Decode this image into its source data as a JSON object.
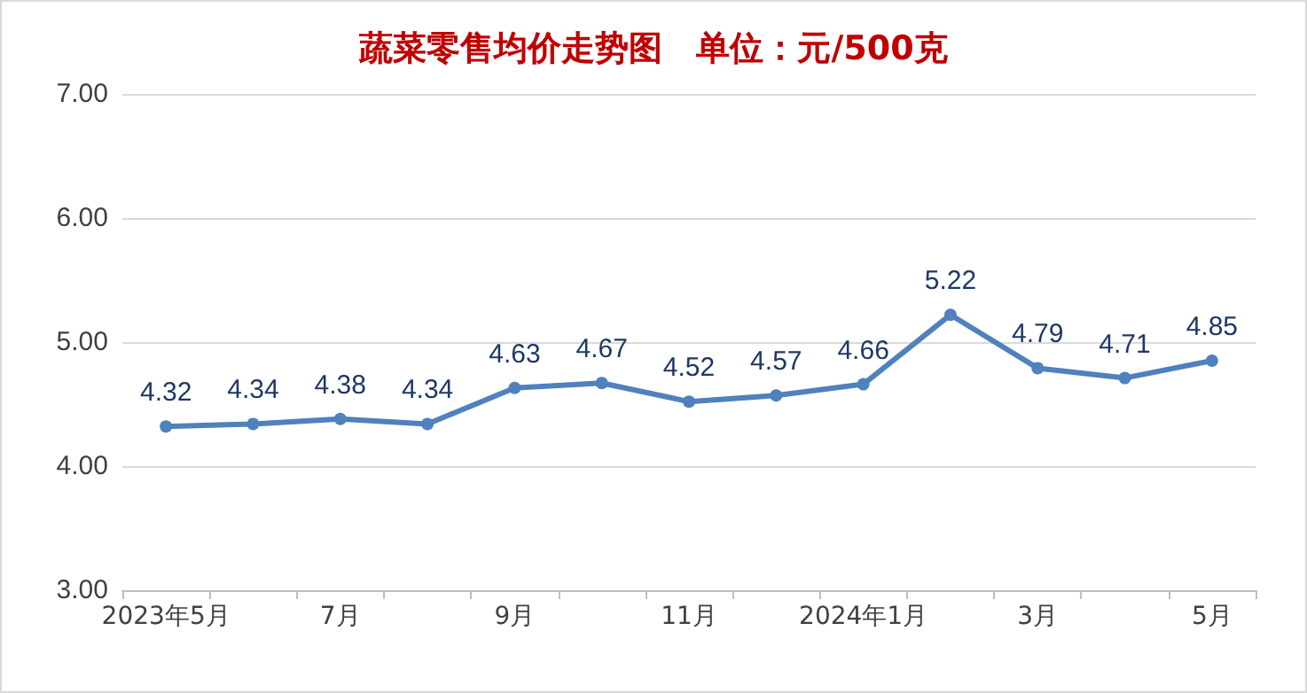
{
  "chart_data": {
    "type": "line",
    "title": "蔬菜零售均价走势图　单位：元/500克",
    "categories": [
      "2023年5月",
      null,
      "7月",
      null,
      "9月",
      null,
      "11月",
      null,
      "2024年1月",
      null,
      "3月",
      null,
      "5月"
    ],
    "series": [
      {
        "color": "#4f81bd",
        "values": [
          4.32,
          4.34,
          4.38,
          4.34,
          4.63,
          4.67,
          4.52,
          4.57,
          4.66,
          5.22,
          4.79,
          4.71,
          4.85
        ]
      }
    ],
    "ylim": [
      3,
      7
    ],
    "yticks": [
      {
        "value": 3,
        "label": "3.00"
      },
      {
        "value": 4,
        "label": "4.00"
      },
      {
        "value": 5,
        "label": "5.00"
      },
      {
        "value": 6,
        "label": "6.00"
      },
      {
        "value": 7,
        "label": "7.00"
      }
    ],
    "grid": "y",
    "data_labels": true,
    "marker": "circle",
    "line_style": "solid"
  }
}
